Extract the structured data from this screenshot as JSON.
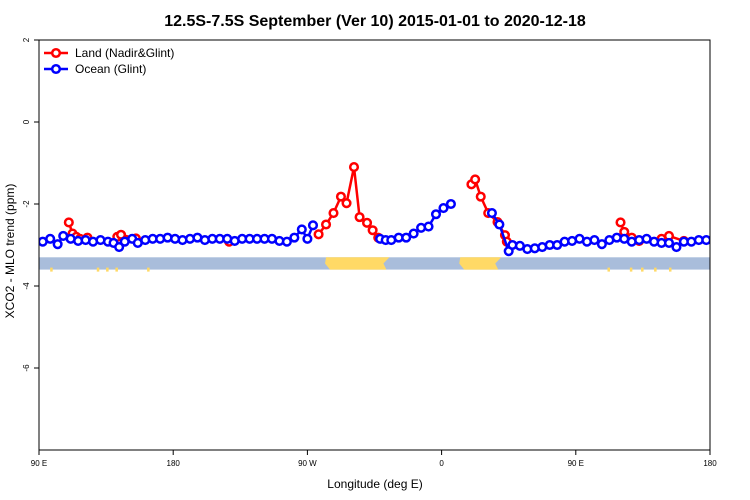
{
  "chart_data": {
    "type": "line",
    "title": "12.5S-7.5S September (Ver 10)   2015-01-01 to 2020-12-18",
    "xlabel": "Longitude (deg E)",
    "ylabel": "XCO2 - MLO trend (ppm)",
    "xlim": [
      90,
      450
    ],
    "ylim": [
      -8,
      2
    ],
    "x_ticks": [
      {
        "value": 90,
        "label": "90 E"
      },
      {
        "value": 162,
        "label": "180"
      },
      {
        "value": 234,
        "label": "90 W"
      },
      {
        "value": 306,
        "label": "0"
      },
      {
        "value": 378,
        "label": "90 E"
      },
      {
        "value": 450,
        "label": "180"
      }
    ],
    "y_ticks": [
      {
        "value": 2,
        "label": "2"
      },
      {
        "value": 0,
        "label": "0"
      },
      {
        "value": -2,
        "label": "-2"
      },
      {
        "value": -4,
        "label": "-4"
      },
      {
        "value": -6,
        "label": "-6"
      }
    ],
    "legend_position": "top-left",
    "land_mask": {
      "ocean_color": "#a9bddb",
      "land_color": "#ffd966",
      "y_range": [
        -3.6,
        -3.3
      ],
      "land_segments": [
        [
          244,
          278
        ],
        [
          316,
          338
        ]
      ],
      "small_islands": [
        96,
        121,
        126,
        131,
        148,
        395,
        407,
        413,
        420,
        428
      ]
    },
    "series": [
      {
        "name": "Land (Nadir&Glint)",
        "color": "#ff0000",
        "points": [
          [
            106,
            -2.45
          ],
          [
            108,
            -2.72
          ],
          [
            110,
            -2.8
          ],
          [
            112,
            -2.85
          ],
          [
            116,
            -2.82
          ],
          [
            132,
            -2.8
          ],
          [
            134,
            -2.75
          ],
          [
            142,
            -2.84
          ],
          [
            192,
            -2.92
          ],
          [
            240,
            -2.74
          ],
          [
            244,
            -2.5
          ],
          [
            248,
            -2.22
          ],
          [
            252,
            -1.82
          ],
          [
            255,
            -1.98
          ],
          [
            259,
            -1.1
          ],
          [
            262,
            -2.32
          ],
          [
            266,
            -2.46
          ],
          [
            269,
            -2.64
          ],
          [
            272,
            -2.82
          ],
          [
            322,
            -1.52
          ],
          [
            324,
            -1.4
          ],
          [
            327,
            -1.82
          ],
          [
            331,
            -2.22
          ],
          [
            336,
            -2.44
          ],
          [
            340,
            -2.76
          ],
          [
            341,
            -2.92
          ],
          [
            402,
            -2.45
          ],
          [
            404,
            -2.68
          ],
          [
            408,
            -2.82
          ],
          [
            412,
            -2.9
          ],
          [
            424,
            -2.85
          ],
          [
            428,
            -2.78
          ],
          [
            436,
            -2.9
          ]
        ]
      },
      {
        "name": "Ocean (Glint)",
        "color": "#0000ff",
        "points": [
          [
            92,
            -2.92
          ],
          [
            96,
            -2.85
          ],
          [
            100,
            -2.98
          ],
          [
            103,
            -2.78
          ],
          [
            107,
            -2.85
          ],
          [
            111,
            -2.9
          ],
          [
            115,
            -2.88
          ],
          [
            119,
            -2.92
          ],
          [
            123,
            -2.88
          ],
          [
            127,
            -2.92
          ],
          [
            130,
            -2.95
          ],
          [
            133,
            -3.05
          ],
          [
            136,
            -2.92
          ],
          [
            140,
            -2.85
          ],
          [
            143,
            -2.95
          ],
          [
            147,
            -2.88
          ],
          [
            151,
            -2.85
          ],
          [
            155,
            -2.85
          ],
          [
            159,
            -2.82
          ],
          [
            163,
            -2.85
          ],
          [
            167,
            -2.88
          ],
          [
            171,
            -2.85
          ],
          [
            175,
            -2.82
          ],
          [
            179,
            -2.88
          ],
          [
            183,
            -2.85
          ],
          [
            187,
            -2.85
          ],
          [
            191,
            -2.85
          ],
          [
            195,
            -2.9
          ],
          [
            199,
            -2.85
          ],
          [
            203,
            -2.85
          ],
          [
            207,
            -2.85
          ],
          [
            211,
            -2.85
          ],
          [
            215,
            -2.85
          ],
          [
            219,
            -2.9
          ],
          [
            223,
            -2.92
          ],
          [
            227,
            -2.82
          ],
          [
            231,
            -2.62
          ],
          [
            234,
            -2.85
          ],
          [
            237,
            -2.52
          ],
          [
            273,
            -2.85
          ],
          [
            276,
            -2.88
          ],
          [
            279,
            -2.88
          ],
          [
            283,
            -2.82
          ],
          [
            287,
            -2.82
          ],
          [
            291,
            -2.72
          ],
          [
            295,
            -2.58
          ],
          [
            299,
            -2.55
          ],
          [
            303,
            -2.25
          ],
          [
            307,
            -2.1
          ],
          [
            311,
            -2.0
          ],
          [
            333,
            -2.22
          ],
          [
            337,
            -2.5
          ],
          [
            342,
            -3.15
          ],
          [
            344,
            -3.0
          ],
          [
            348,
            -3.02
          ],
          [
            352,
            -3.1
          ],
          [
            356,
            -3.08
          ],
          [
            360,
            -3.05
          ],
          [
            364,
            -3.0
          ],
          [
            368,
            -3.0
          ],
          [
            372,
            -2.92
          ],
          [
            376,
            -2.9
          ],
          [
            380,
            -2.85
          ],
          [
            384,
            -2.92
          ],
          [
            388,
            -2.88
          ],
          [
            392,
            -2.98
          ],
          [
            396,
            -2.88
          ],
          [
            400,
            -2.82
          ],
          [
            404,
            -2.85
          ],
          [
            408,
            -2.92
          ],
          [
            412,
            -2.88
          ],
          [
            416,
            -2.85
          ],
          [
            420,
            -2.92
          ],
          [
            424,
            -2.95
          ],
          [
            428,
            -2.95
          ],
          [
            432,
            -3.05
          ],
          [
            436,
            -2.92
          ],
          [
            440,
            -2.92
          ],
          [
            444,
            -2.88
          ],
          [
            448,
            -2.88
          ]
        ]
      }
    ]
  }
}
